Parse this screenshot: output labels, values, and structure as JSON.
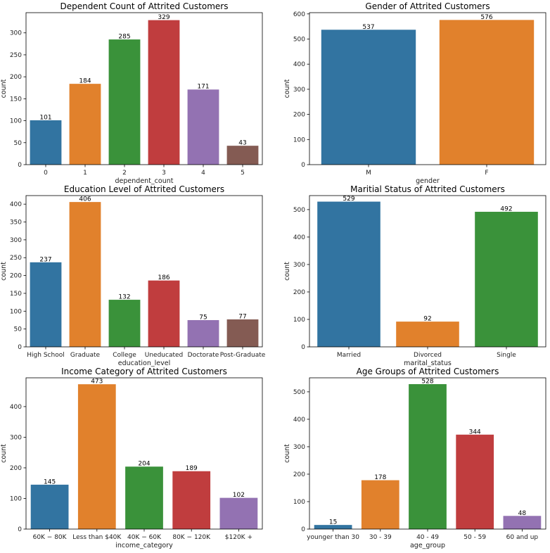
{
  "chart_data": [
    {
      "type": "bar",
      "title": "Dependent Count of Attrited Customers",
      "xlabel": "dependent_count",
      "ylabel": "count",
      "categories": [
        "0",
        "1",
        "2",
        "3",
        "4",
        "5"
      ],
      "values": [
        101,
        184,
        285,
        329,
        171,
        43
      ],
      "ylim": [
        0,
        346
      ],
      "yticks": [
        0,
        50,
        100,
        150,
        200,
        250,
        300
      ],
      "grid": false
    },
    {
      "type": "bar",
      "title": "Gender of Attrited Customers",
      "xlabel": "gender",
      "ylabel": "count",
      "categories": [
        "M",
        "F"
      ],
      "values": [
        537,
        576
      ],
      "ylim": [
        0,
        605
      ],
      "yticks": [
        0,
        100,
        200,
        300,
        400,
        500,
        600
      ],
      "grid": false
    },
    {
      "type": "bar",
      "title": "Education Level of Attrited Customers",
      "xlabel": "education_level",
      "ylabel": "count",
      "categories": [
        "High School",
        "Graduate",
        "College",
        "Uneducated",
        "Doctorate",
        "Post-Graduate"
      ],
      "values": [
        237,
        406,
        132,
        186,
        75,
        77
      ],
      "ylim": [
        0,
        424
      ],
      "yticks": [
        0,
        50,
        100,
        150,
        200,
        250,
        300,
        350,
        400
      ],
      "grid": false
    },
    {
      "type": "bar",
      "title": "Maritial Status of Attrited Customers",
      "xlabel": "marital_status",
      "ylabel": "count",
      "categories": [
        "Married",
        "Divorced",
        "Single"
      ],
      "values": [
        529,
        92,
        492
      ],
      "ylim": [
        0,
        551
      ],
      "yticks": [
        0,
        100,
        200,
        300,
        400,
        500
      ],
      "grid": false
    },
    {
      "type": "bar",
      "title": "Income Category of Attrited Customers",
      "xlabel": "income_category",
      "ylabel": "count",
      "categories": [
        "60K − 80K",
        "Less than $40K",
        "40K − 60K",
        "80K − 120K",
        "$120K +"
      ],
      "values": [
        145,
        473,
        204,
        189,
        102
      ],
      "ylim": [
        0,
        494
      ],
      "yticks": [
        0,
        100,
        200,
        300,
        400
      ],
      "grid": false
    },
    {
      "type": "bar",
      "title": "Age Groups of Attrited Customers",
      "xlabel": "age_group",
      "ylabel": "count",
      "categories": [
        "younger than 30",
        "30 - 39",
        "40 - 49",
        "50 - 59",
        "60 and up"
      ],
      "values": [
        15,
        178,
        528,
        344,
        48
      ],
      "ylim": [
        0,
        551
      ],
      "yticks": [
        0,
        100,
        200,
        300,
        400,
        500
      ],
      "grid": false
    }
  ],
  "colors": [
    "#3274a1",
    "#e1812c",
    "#3a923a",
    "#c03d3e",
    "#9372b2",
    "#845b53"
  ]
}
